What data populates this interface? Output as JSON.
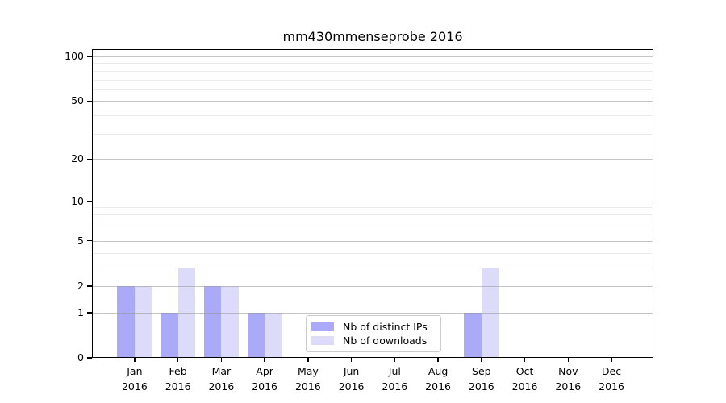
{
  "figure": {
    "background": "#ffffff"
  },
  "chart_data": {
    "type": "bar",
    "title": "mm430mmenseprobe 2016",
    "categories": [
      "Jan 2016",
      "Feb 2016",
      "Mar 2016",
      "Apr 2016",
      "May 2016",
      "Jun 2016",
      "Jul 2016",
      "Aug 2016",
      "Sep 2016",
      "Oct 2016",
      "Nov 2016",
      "Dec 2016"
    ],
    "series": [
      {
        "name": "Nb of distinct IPs",
        "color": "#aaaaf8",
        "values": [
          2,
          1,
          2,
          1,
          0,
          0,
          0,
          0,
          1,
          0,
          0,
          0
        ]
      },
      {
        "name": "Nb of downloads",
        "color": "#dcdcfa",
        "values": [
          2,
          3,
          2,
          1,
          0,
          0,
          0,
          0,
          3,
          0,
          0,
          0
        ]
      }
    ],
    "xlabel": "",
    "ylabel": "",
    "yscale": "log1p",
    "ylim": [
      0,
      112
    ],
    "yticks": [
      0,
      1,
      2,
      5,
      10,
      20,
      50,
      100
    ],
    "yminorticks": [
      3,
      4,
      6,
      7,
      8,
      9,
      30,
      40,
      60,
      70,
      80,
      90
    ],
    "grid": "horizontal-major-and-minor",
    "legend_position": "lower-center",
    "colors": {
      "major_grid": "#c4c4c4",
      "minor_grid": "#ececec",
      "axis": "#000000",
      "text": "#000000"
    }
  }
}
